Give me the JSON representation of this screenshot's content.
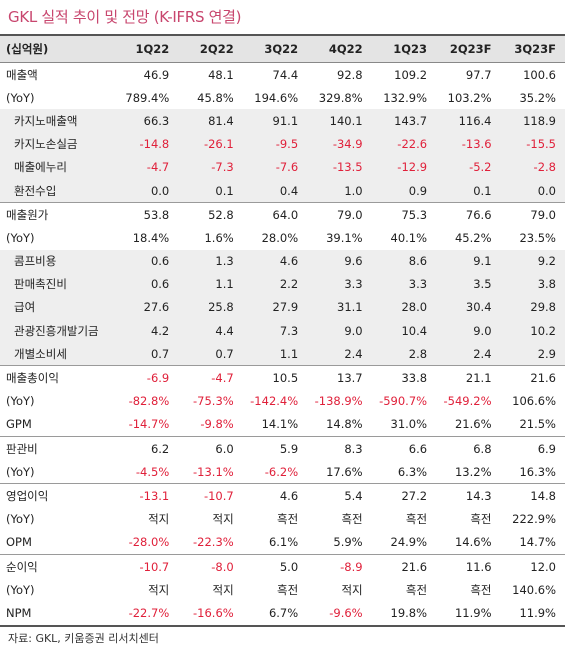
{
  "title": "GKL 실적 추이 및 전망 (K-IFRS 연결)",
  "header": [
    "(십억원)",
    "1Q22",
    "2Q22",
    "3Q22",
    "4Q22",
    "1Q23",
    "2Q23F",
    "3Q23F"
  ],
  "rows": [
    {
      "label": "매출액",
      "values": [
        "46.9",
        "48.1",
        "74.4",
        "92.8",
        "109.2",
        "97.7",
        "100.6"
      ],
      "sub": false,
      "shade": false,
      "group": false
    },
    {
      "label": "(YoY)",
      "values": [
        "789.4%",
        "45.8%",
        "194.6%",
        "329.8%",
        "132.9%",
        "103.2%",
        "35.2%"
      ],
      "sub": false,
      "shade": false,
      "group": false
    },
    {
      "label": "카지노매출액",
      "values": [
        "66.3",
        "81.4",
        "91.1",
        "140.1",
        "143.7",
        "116.4",
        "118.9"
      ],
      "sub": true,
      "shade": true,
      "group": false
    },
    {
      "label": "카지노손실금",
      "values": [
        "-14.8",
        "-26.1",
        "-9.5",
        "-34.9",
        "-22.6",
        "-13.6",
        "-15.5"
      ],
      "sub": true,
      "shade": true,
      "group": false
    },
    {
      "label": "매출에누리",
      "values": [
        "-4.7",
        "-7.3",
        "-7.6",
        "-13.5",
        "-12.9",
        "-5.2",
        "-2.8"
      ],
      "sub": true,
      "shade": true,
      "group": false
    },
    {
      "label": "환전수입",
      "values": [
        "0.0",
        "0.1",
        "0.4",
        "1.0",
        "0.9",
        "0.1",
        "0.0"
      ],
      "sub": true,
      "shade": true,
      "group": false
    },
    {
      "label": "매출원가",
      "values": [
        "53.8",
        "52.8",
        "64.0",
        "79.0",
        "75.3",
        "76.6",
        "79.0"
      ],
      "sub": false,
      "shade": false,
      "group": true
    },
    {
      "label": "(YoY)",
      "values": [
        "18.4%",
        "1.6%",
        "28.0%",
        "39.1%",
        "40.1%",
        "45.2%",
        "23.5%"
      ],
      "sub": false,
      "shade": false,
      "group": false
    },
    {
      "label": "콤프비용",
      "values": [
        "0.6",
        "1.3",
        "4.6",
        "9.6",
        "8.6",
        "9.1",
        "9.2"
      ],
      "sub": true,
      "shade": true,
      "group": false
    },
    {
      "label": "판매촉진비",
      "values": [
        "0.6",
        "1.1",
        "2.2",
        "3.3",
        "3.3",
        "3.5",
        "3.8"
      ],
      "sub": true,
      "shade": true,
      "group": false
    },
    {
      "label": "급여",
      "values": [
        "27.6",
        "25.8",
        "27.9",
        "31.1",
        "28.0",
        "30.4",
        "29.8"
      ],
      "sub": true,
      "shade": true,
      "group": false
    },
    {
      "label": "관광진흥개발기금",
      "values": [
        "4.2",
        "4.4",
        "7.3",
        "9.0",
        "10.4",
        "9.0",
        "10.2"
      ],
      "sub": true,
      "shade": true,
      "group": false
    },
    {
      "label": "개별소비세",
      "values": [
        "0.7",
        "0.7",
        "1.1",
        "2.4",
        "2.8",
        "2.4",
        "2.9"
      ],
      "sub": true,
      "shade": true,
      "group": false
    },
    {
      "label": "매출총이익",
      "values": [
        "-6.9",
        "-4.7",
        "10.5",
        "13.7",
        "33.8",
        "21.1",
        "21.6"
      ],
      "sub": false,
      "shade": false,
      "group": true
    },
    {
      "label": "(YoY)",
      "values": [
        "-82.8%",
        "-75.3%",
        "-142.4%",
        "-138.9%",
        "-590.7%",
        "-549.2%",
        "106.6%"
      ],
      "sub": false,
      "shade": false,
      "group": false
    },
    {
      "label": "GPM",
      "values": [
        "-14.7%",
        "-9.8%",
        "14.1%",
        "14.8%",
        "31.0%",
        "21.6%",
        "21.5%"
      ],
      "sub": false,
      "shade": false,
      "group": false
    },
    {
      "label": "판관비",
      "values": [
        "6.2",
        "6.0",
        "5.9",
        "8.3",
        "6.6",
        "6.8",
        "6.9"
      ],
      "sub": false,
      "shade": false,
      "group": true
    },
    {
      "label": "(YoY)",
      "values": [
        "-4.5%",
        "-13.1%",
        "-6.2%",
        "17.6%",
        "6.3%",
        "13.2%",
        "16.3%"
      ],
      "sub": false,
      "shade": false,
      "group": false
    },
    {
      "label": "영업이익",
      "values": [
        "-13.1",
        "-10.7",
        "4.6",
        "5.4",
        "27.2",
        "14.3",
        "14.8"
      ],
      "sub": false,
      "shade": false,
      "group": true
    },
    {
      "label": "(YoY)",
      "values": [
        "적지",
        "적지",
        "흑전",
        "흑전",
        "흑전",
        "흑전",
        "222.9%"
      ],
      "sub": false,
      "shade": false,
      "group": false
    },
    {
      "label": "OPM",
      "values": [
        "-28.0%",
        "-22.3%",
        "6.1%",
        "5.9%",
        "24.9%",
        "14.6%",
        "14.7%"
      ],
      "sub": false,
      "shade": false,
      "group": false
    },
    {
      "label": "순이익",
      "values": [
        "-10.7",
        "-8.0",
        "5.0",
        "-8.9",
        "21.6",
        "11.6",
        "12.0"
      ],
      "sub": false,
      "shade": false,
      "group": true
    },
    {
      "label": "(YoY)",
      "values": [
        "적지",
        "적지",
        "흑전",
        "적지",
        "흑전",
        "흑전",
        "140.6%"
      ],
      "sub": false,
      "shade": false,
      "group": false
    },
    {
      "label": "NPM",
      "values": [
        "-22.7%",
        "-16.6%",
        "6.7%",
        "-9.6%",
        "19.8%",
        "11.9%",
        "11.9%"
      ],
      "sub": false,
      "shade": false,
      "group": false
    }
  ],
  "source": "자료: GKL, 키움증권 리서치센터",
  "colors": {
    "title": "#c8466e",
    "negative": "#e0203a",
    "header_bg": "#e4e4e4",
    "shade_bg": "#eeeeee"
  }
}
